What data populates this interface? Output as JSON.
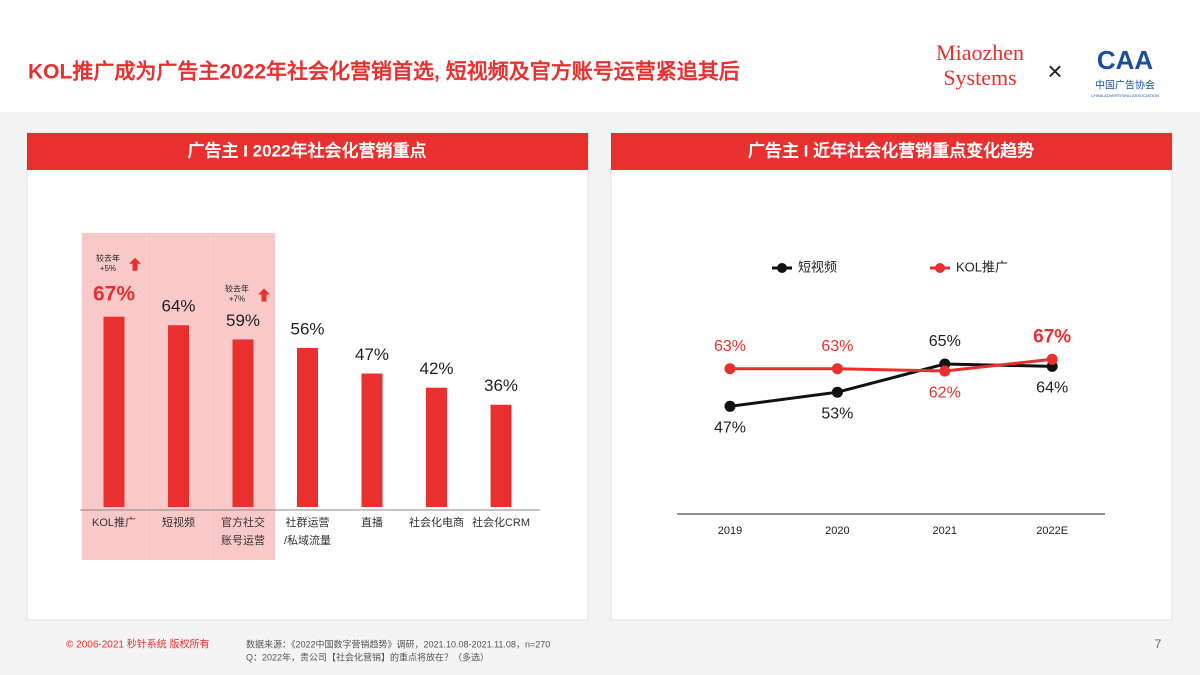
{
  "header": {
    "title": "KOL推广成为广告主2022年社会化营销首选, 短视频及官方账号运营紧追其后",
    "logo_line1": "Miaozhen",
    "logo_line2": "Systems",
    "separator": "×",
    "partner_logo": "CAA",
    "partner_name": "中国广告协会",
    "partner_name_en": "CHINA ADVERTISING ASSOCIATION"
  },
  "chart_data": [
    {
      "type": "bar",
      "title": "广告主 I 2022年社会化营销重点",
      "categories": [
        "KOL推广",
        "短视频",
        "官方社交\n账号运营",
        "社群运营\n/私域流量",
        "直播",
        "社会化电商",
        "社会化CRM"
      ],
      "values": [
        67,
        64,
        59,
        56,
        47,
        42,
        36
      ],
      "value_labels": [
        "67%",
        "64%",
        "59%",
        "56%",
        "47%",
        "42%",
        "36%"
      ],
      "annotations": [
        {
          "label": "较去年",
          "change": "+5%"
        },
        null,
        {
          "label": "较去年",
          "change": "+7%"
        },
        null,
        null,
        null,
        null
      ],
      "highlight": [
        true,
        true,
        true,
        false,
        false,
        false,
        false
      ],
      "color": "#e8302f"
    },
    {
      "type": "line",
      "title": "广告主 I 近年社会化营销重点变化趋势",
      "categories": [
        "2019",
        "2020",
        "2021",
        "2022E"
      ],
      "series": [
        {
          "name": "短视频",
          "color": "#111111",
          "values": [
            47,
            53,
            65,
            64
          ],
          "value_labels": [
            "47%",
            "53%",
            "65%",
            "64%"
          ]
        },
        {
          "name": "KOL推广",
          "color": "#e8302f",
          "values": [
            63,
            63,
            62,
            67
          ],
          "value_labels": [
            "63%",
            "63%",
            "62%",
            "67%"
          ]
        }
      ]
    }
  ],
  "footer": {
    "copyright": "© 2006-2021 秒针系统 版权所有",
    "source": "数据来源：《2022中国数字营销趋势》调研，2021.10.08-2021.11.08，n=270",
    "question": "Q：2022年，贵公司【社会化营销】的重点将放在？（多选）",
    "page": "7"
  }
}
